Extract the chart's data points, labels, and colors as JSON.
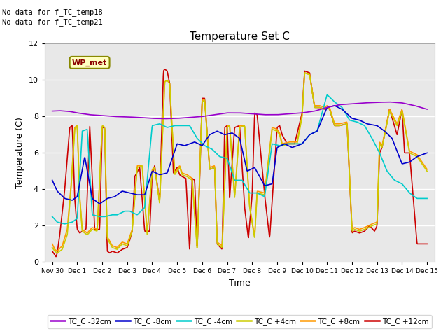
{
  "title": "Temperature Set C",
  "xlabel": "Time",
  "ylabel": "Temperature (C)",
  "ylim": [
    0,
    12
  ],
  "xlim": [
    -0.3,
    15.3
  ],
  "annotations": [
    "No data for f_TC_temp18",
    "No data for f_TC_temp21"
  ],
  "wp_met_label": "WP_met",
  "legend_entries": [
    "TC_C -32cm",
    "TC_C -8cm",
    "TC_C -4cm",
    "TC_C +4cm",
    "TC_C +8cm",
    "TC_C +12cm"
  ],
  "line_colors": {
    "TC_C -32cm": "#9900cc",
    "TC_C -8cm": "#0000cc",
    "TC_C -4cm": "#00cccc",
    "TC_C +4cm": "#cccc00",
    "TC_C +8cm": "#ff9900",
    "TC_C +12cm": "#cc0000"
  },
  "plot_bg": "#e8e8e8",
  "grid_color": "#ffffff",
  "xtick_labels": [
    "Nov 30",
    "Dec 1",
    "Dec 2",
    "Dec 3",
    "Dec 4",
    "Dec 5",
    "Dec 6",
    "Dec 7",
    "Dec 8",
    "Dec 9",
    "Dec 10",
    "Dec 11",
    "Dec 12",
    "Dec 13",
    "Dec 14",
    "Dec 15"
  ],
  "xtick_positions": [
    0,
    1,
    2,
    3,
    4,
    5,
    6,
    7,
    8,
    9,
    10,
    11,
    12,
    13,
    14,
    15
  ]
}
